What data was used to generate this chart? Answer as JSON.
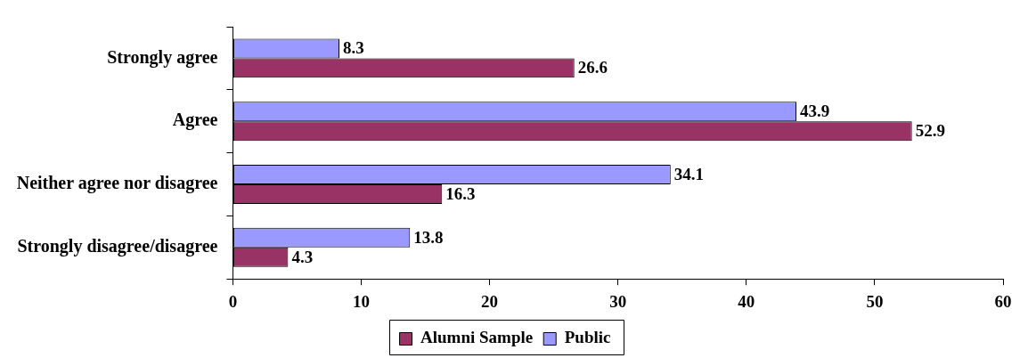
{
  "chart_data": {
    "type": "bar",
    "orientation": "horizontal",
    "categories": [
      "Strongly agree",
      "Agree",
      "Neither agree nor disagree",
      "Strongly disagree/disagree"
    ],
    "series": [
      {
        "name": "Alumni Sample",
        "color": "#993366",
        "values": [
          26.6,
          52.9,
          16.3,
          4.3
        ]
      },
      {
        "name": "Public",
        "color": "#9999ff",
        "values": [
          8.3,
          43.9,
          34.1,
          13.8
        ]
      }
    ],
    "xlim": [
      0,
      60
    ],
    "xticks": [
      0,
      10,
      20,
      30,
      40,
      50,
      60
    ],
    "data_labels": true,
    "legend": "bottom",
    "grid": false
  }
}
